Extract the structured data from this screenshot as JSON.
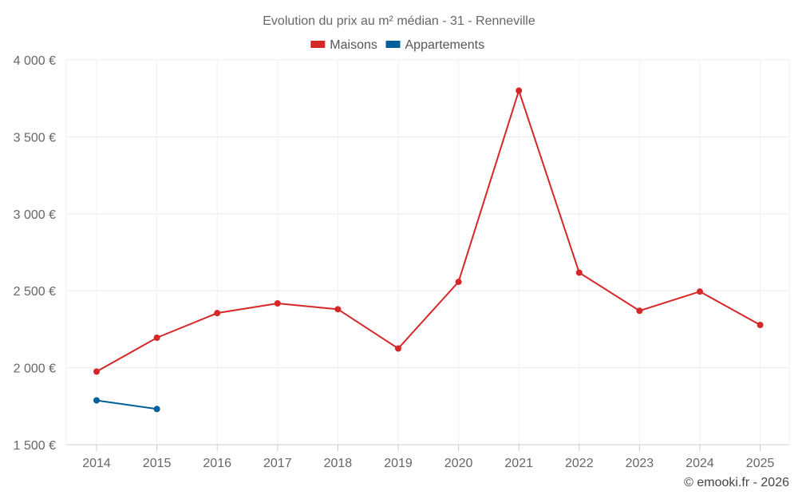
{
  "chart_data": {
    "type": "line",
    "title": "Evolution du prix au m² médian - 31 - Renneville",
    "categories": [
      "2014",
      "2015",
      "2016",
      "2017",
      "2018",
      "2019",
      "2020",
      "2021",
      "2022",
      "2023",
      "2024",
      "2025"
    ],
    "series": [
      {
        "name": "Maisons",
        "color": "#d62728",
        "values": [
          1975,
          2195,
          2355,
          2418,
          2380,
          2125,
          2558,
          3800,
          2618,
          2370,
          2495,
          2278
        ]
      },
      {
        "name": "Appartements",
        "color": "#005f99",
        "values": [
          1788,
          1732,
          null,
          null,
          null,
          null,
          null,
          null,
          null,
          null,
          null,
          null
        ]
      }
    ],
    "ylim": [
      1500,
      4000
    ],
    "yticks": [
      1500,
      2000,
      2500,
      3000,
      3500,
      4000
    ],
    "ytick_labels": [
      "1 500 €",
      "2 000 €",
      "2 500 €",
      "3 000 €",
      "3 500 €",
      "4 000 €"
    ],
    "xlabel": "",
    "ylabel": "",
    "legend_position": "top-center",
    "grid": true
  },
  "credit": "© emooki.fr - 2026"
}
